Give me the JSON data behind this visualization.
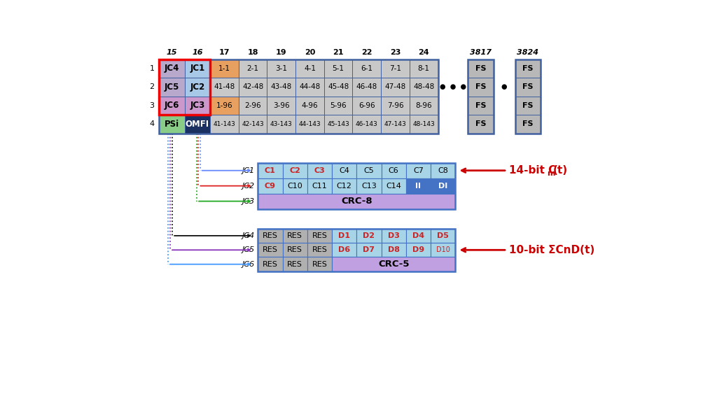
{
  "bg_color": "#ffffff",
  "fig_width": 10.24,
  "fig_height": 5.76,
  "top_table": {
    "col_labels": [
      "15",
      "16",
      "17",
      "18",
      "19",
      "20",
      "21",
      "22",
      "23",
      "24",
      "",
      "3817",
      "",
      "3824"
    ],
    "row_labels": [
      "1",
      "2",
      "3",
      "4"
    ],
    "row1": [
      "JC4",
      "JC1",
      "1-1",
      "2-1",
      "3-1",
      "4-1",
      "5-1",
      "6-1",
      "7-1",
      "8-1",
      "",
      "FS",
      "",
      "FS"
    ],
    "row2": [
      "JC5",
      "JC2",
      "41-48",
      "42-48",
      "43-48",
      "44-48",
      "45-48",
      "46-48",
      "47-48",
      "48-48",
      "",
      "FS",
      "",
      "FS"
    ],
    "row3": [
      "JC6",
      "JC3",
      "1-96",
      "2-96",
      "3-96",
      "4-96",
      "5-96",
      "6-96",
      "7-96",
      "8-96",
      "",
      "FS",
      "",
      "FS"
    ],
    "row4": [
      "PSi",
      "OMFI",
      "41-143",
      "42-143",
      "43-143",
      "44-143",
      "45-143",
      "46-143",
      "47-143",
      "48-143",
      "",
      "FS",
      "",
      "FS"
    ],
    "jc4_color": "#b8a8cc",
    "jc1_color": "#a8c8e8",
    "jc5_color": "#b8a8cc",
    "jc2_color": "#a8c8e8",
    "jc6_color": "#cc98cc",
    "jc3_color": "#cc98cc",
    "psi_color": "#88cc88",
    "omfi_color": "#1a3060",
    "data_cell_color": "#c8c8c8",
    "fs_cell_color": "#b8b8b8",
    "orange_cell_color": "#e8a060",
    "table_border_color": "#4060a0",
    "red_outline_color": "#ee0000"
  },
  "bottom_left": {
    "row1_cells": [
      "C1",
      "C2",
      "C3",
      "C4",
      "C5",
      "C6",
      "C7",
      "C8"
    ],
    "row2_cells": [
      "C9",
      "C10",
      "C11",
      "C12",
      "C13",
      "C14",
      "II",
      "DI"
    ],
    "row3_span": "CRC-8",
    "cell_bg": "#a8d4e8",
    "cell_border": "#4472c4",
    "red_cells_row1": [
      "C1",
      "C2",
      "C3"
    ],
    "red_cells_row2": [
      "C9"
    ],
    "blue_cells_row2": [
      "II",
      "DI"
    ],
    "blue_cell_color": "#4472c4",
    "crc_color": "#c0a0e0"
  },
  "bottom_right": {
    "row1_cells": [
      "RES",
      "RES",
      "RES",
      "D1",
      "D2",
      "D3",
      "D4",
      "D5"
    ],
    "row2_cells": [
      "RES",
      "RES",
      "RES",
      "D6",
      "D7",
      "D8",
      "D9",
      "D10"
    ],
    "row3_span": "CRC-5",
    "res_color": "#b0b0b0",
    "data_color": "#a8d4e8",
    "crc_color": "#c0a0e0",
    "red_data_r1": [
      "D1",
      "D2",
      "D3",
      "D4",
      "D5"
    ],
    "red_data_r2": [
      "D6",
      "D7",
      "D8",
      "D9"
    ],
    "small_cells": [
      "D10"
    ]
  },
  "line_colors": {
    "JC1": "#6688ff",
    "JC2": "#dd2222",
    "JC3": "#22aa22",
    "JC4": "#111111",
    "JC5": "#8833bb",
    "JC6": "#4499ff"
  }
}
